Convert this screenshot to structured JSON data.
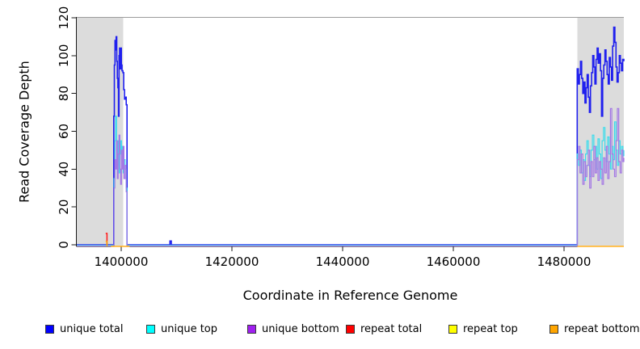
{
  "chart_data": {
    "type": "line",
    "title": "",
    "xlabel": "Coordinate in Reference Genome",
    "ylabel": "Read Coverage Depth",
    "xlim": [
      1391971,
      1490803
    ],
    "ylim": [
      0,
      120
    ],
    "x_ticks": [
      1400000,
      1420000,
      1440000,
      1460000,
      1480000
    ],
    "x_tick_labels": [
      "1400000",
      "1420000",
      "1440000",
      "1460000",
      "1480000"
    ],
    "y_ticks": [
      0,
      20,
      40,
      60,
      80,
      100,
      120
    ],
    "y_tick_labels": [
      "0",
      "20",
      "40",
      "60",
      "80",
      "100",
      "120"
    ],
    "grid": false,
    "legend_position": "bottom",
    "shade_color": "#dcdcdc",
    "top_rule_color": "#9c9c9c",
    "axis_color": "#1a1a1a",
    "shaded_regions": [
      {
        "x0": 1391971,
        "x1": 1400365
      },
      {
        "x0": 1482409,
        "x1": 1490803
      }
    ],
    "series": [
      {
        "name": "repeat top",
        "line_color": "#ffff00",
        "segments": []
      },
      {
        "name": "unique total",
        "line_color": "#2020ee",
        "segments": [
          [
            [
              1391971,
              0
            ],
            [
              1398650,
              68
            ],
            [
              1398760,
              95
            ],
            [
              1398870,
              108
            ],
            [
              1398980,
              103
            ],
            [
              1399080,
              110
            ],
            [
              1399190,
              97
            ],
            [
              1399300,
              88
            ],
            [
              1399400,
              83
            ],
            [
              1399500,
              68
            ],
            [
              1399610,
              100
            ],
            [
              1399710,
              104
            ],
            [
              1399810,
              93
            ],
            [
              1399920,
              104
            ],
            [
              1400030,
              95
            ],
            [
              1400150,
              92
            ],
            [
              1400300,
              91
            ],
            [
              1400450,
              82
            ],
            [
              1400600,
              77
            ],
            [
              1400750,
              78
            ],
            [
              1400900,
              74
            ],
            [
              1401050,
              0
            ],
            [
              1408800,
              2
            ],
            [
              1409050,
              0
            ],
            [
              1482380,
              93
            ],
            [
              1482580,
              85
            ],
            [
              1482780,
              90
            ],
            [
              1482980,
              97
            ],
            [
              1483180,
              88
            ],
            [
              1483380,
              80
            ],
            [
              1483580,
              86
            ],
            [
              1483780,
              75
            ],
            [
              1483980,
              83
            ],
            [
              1484180,
              90
            ],
            [
              1484380,
              78
            ],
            [
              1484580,
              70
            ],
            [
              1484780,
              84
            ],
            [
              1484980,
              91
            ],
            [
              1485180,
              100
            ],
            [
              1485380,
              94
            ],
            [
              1485580,
              85
            ],
            [
              1485780,
              98
            ],
            [
              1485980,
              104
            ],
            [
              1486180,
              96
            ],
            [
              1486380,
              101
            ],
            [
              1486580,
              92
            ],
            [
              1486780,
              68
            ],
            [
              1486980,
              88
            ],
            [
              1487180,
              95
            ],
            [
              1487380,
              103
            ],
            [
              1487580,
              97
            ],
            [
              1487780,
              90
            ],
            [
              1487980,
              85
            ],
            [
              1488180,
              99
            ],
            [
              1488380,
              94
            ],
            [
              1488580,
              87
            ],
            [
              1488780,
              105
            ],
            [
              1488980,
              115
            ],
            [
              1489180,
              107
            ],
            [
              1489380,
              94
            ],
            [
              1489580,
              86
            ],
            [
              1489780,
              91
            ],
            [
              1489980,
              100
            ],
            [
              1490180,
              96
            ],
            [
              1490380,
              92
            ],
            [
              1490580,
              98
            ],
            [
              1490803,
              97
            ]
          ]
        ]
      },
      {
        "name": "unique top",
        "line_color": "#3bdcec",
        "segments": [
          [
            [
              1391971,
              0
            ],
            [
              1398700,
              35
            ],
            [
              1398850,
              55
            ],
            [
              1399000,
              68
            ],
            [
              1399150,
              50
            ],
            [
              1399300,
              42
            ],
            [
              1399450,
              55
            ],
            [
              1399600,
              38
            ],
            [
              1399750,
              48
            ],
            [
              1399900,
              55
            ],
            [
              1400050,
              45
            ],
            [
              1400200,
              52
            ],
            [
              1400350,
              38
            ],
            [
              1400500,
              45
            ],
            [
              1400700,
              40
            ],
            [
              1400900,
              30
            ],
            [
              1401050,
              0
            ],
            [
              1482380,
              48
            ],
            [
              1482630,
              42
            ],
            [
              1482880,
              50
            ],
            [
              1483130,
              38
            ],
            [
              1483380,
              45
            ],
            [
              1483630,
              34
            ],
            [
              1483880,
              48
            ],
            [
              1484130,
              55
            ],
            [
              1484380,
              42
            ],
            [
              1484630,
              36
            ],
            [
              1484880,
              50
            ],
            [
              1485130,
              58
            ],
            [
              1485380,
              45
            ],
            [
              1485630,
              52
            ],
            [
              1485880,
              40
            ],
            [
              1486130,
              56
            ],
            [
              1486380,
              48
            ],
            [
              1486630,
              35
            ],
            [
              1486880,
              55
            ],
            [
              1487130,
              62
            ],
            [
              1487380,
              50
            ],
            [
              1487630,
              44
            ],
            [
              1487880,
              57
            ],
            [
              1488130,
              48
            ],
            [
              1488380,
              40
            ],
            [
              1488630,
              52
            ],
            [
              1488880,
              45
            ],
            [
              1489130,
              65
            ],
            [
              1489380,
              50
            ],
            [
              1489630,
              42
            ],
            [
              1489880,
              55
            ],
            [
              1490130,
              48
            ],
            [
              1490380,
              52
            ],
            [
              1490630,
              47
            ],
            [
              1490803,
              50
            ]
          ]
        ]
      },
      {
        "name": "unique bottom",
        "line_color": "#a478e4",
        "segments": [
          [
            [
              1391971,
              0
            ],
            [
              1398700,
              30
            ],
            [
              1398850,
              45
            ],
            [
              1399000,
              40
            ],
            [
              1399150,
              55
            ],
            [
              1399300,
              35
            ],
            [
              1399450,
              48
            ],
            [
              1399600,
              58
            ],
            [
              1399750,
              40
            ],
            [
              1399900,
              32
            ],
            [
              1400050,
              50
            ],
            [
              1400200,
              40
            ],
            [
              1400350,
              52
            ],
            [
              1400500,
              35
            ],
            [
              1400700,
              42
            ],
            [
              1400900,
              28
            ],
            [
              1401050,
              0
            ],
            [
              1482380,
              45
            ],
            [
              1482630,
              52
            ],
            [
              1482880,
              38
            ],
            [
              1483130,
              48
            ],
            [
              1483380,
              32
            ],
            [
              1483630,
              44
            ],
            [
              1483880,
              36
            ],
            [
              1484130,
              42
            ],
            [
              1484380,
              50
            ],
            [
              1484630,
              30
            ],
            [
              1484880,
              44
            ],
            [
              1485130,
              36
            ],
            [
              1485380,
              52
            ],
            [
              1485630,
              38
            ],
            [
              1485880,
              46
            ],
            [
              1486130,
              34
            ],
            [
              1486380,
              44
            ],
            [
              1486630,
              40
            ],
            [
              1486880,
              32
            ],
            [
              1487130,
              46
            ],
            [
              1487380,
              38
            ],
            [
              1487630,
              52
            ],
            [
              1487880,
              35
            ],
            [
              1488130,
              44
            ],
            [
              1488380,
              72
            ],
            [
              1488630,
              48
            ],
            [
              1488880,
              40
            ],
            [
              1489130,
              36
            ],
            [
              1489380,
              55
            ],
            [
              1489630,
              72
            ],
            [
              1489880,
              44
            ],
            [
              1490130,
              38
            ],
            [
              1490380,
              50
            ],
            [
              1490630,
              44
            ],
            [
              1490803,
              46
            ]
          ]
        ]
      },
      {
        "name": "repeat total",
        "line_color": "#ff2222",
        "segments": [
          [
            [
              1397200,
              6
            ],
            [
              1397430,
              0
            ]
          ]
        ]
      },
      {
        "name": "repeat bottom",
        "line_color": "#ffa500",
        "segments": [
          [
            [
              1397200,
              1.8
            ],
            [
              1397430,
              0
            ]
          ],
          [
            [
              1398150,
              0
            ],
            [
              1401500,
              0
            ]
          ],
          [
            [
              1482409,
              0
            ],
            [
              1490803,
              0
            ]
          ]
        ]
      }
    ],
    "legend": [
      {
        "label": "unique total",
        "color": "#0000ff"
      },
      {
        "label": "unique top",
        "color": "#00ffff"
      },
      {
        "label": "unique bottom",
        "color": "#a020f0"
      },
      {
        "label": "repeat total",
        "color": "#ff0000"
      },
      {
        "label": "repeat top",
        "color": "#ffff00"
      },
      {
        "label": "repeat bottom",
        "color": "#ffa500"
      }
    ]
  }
}
